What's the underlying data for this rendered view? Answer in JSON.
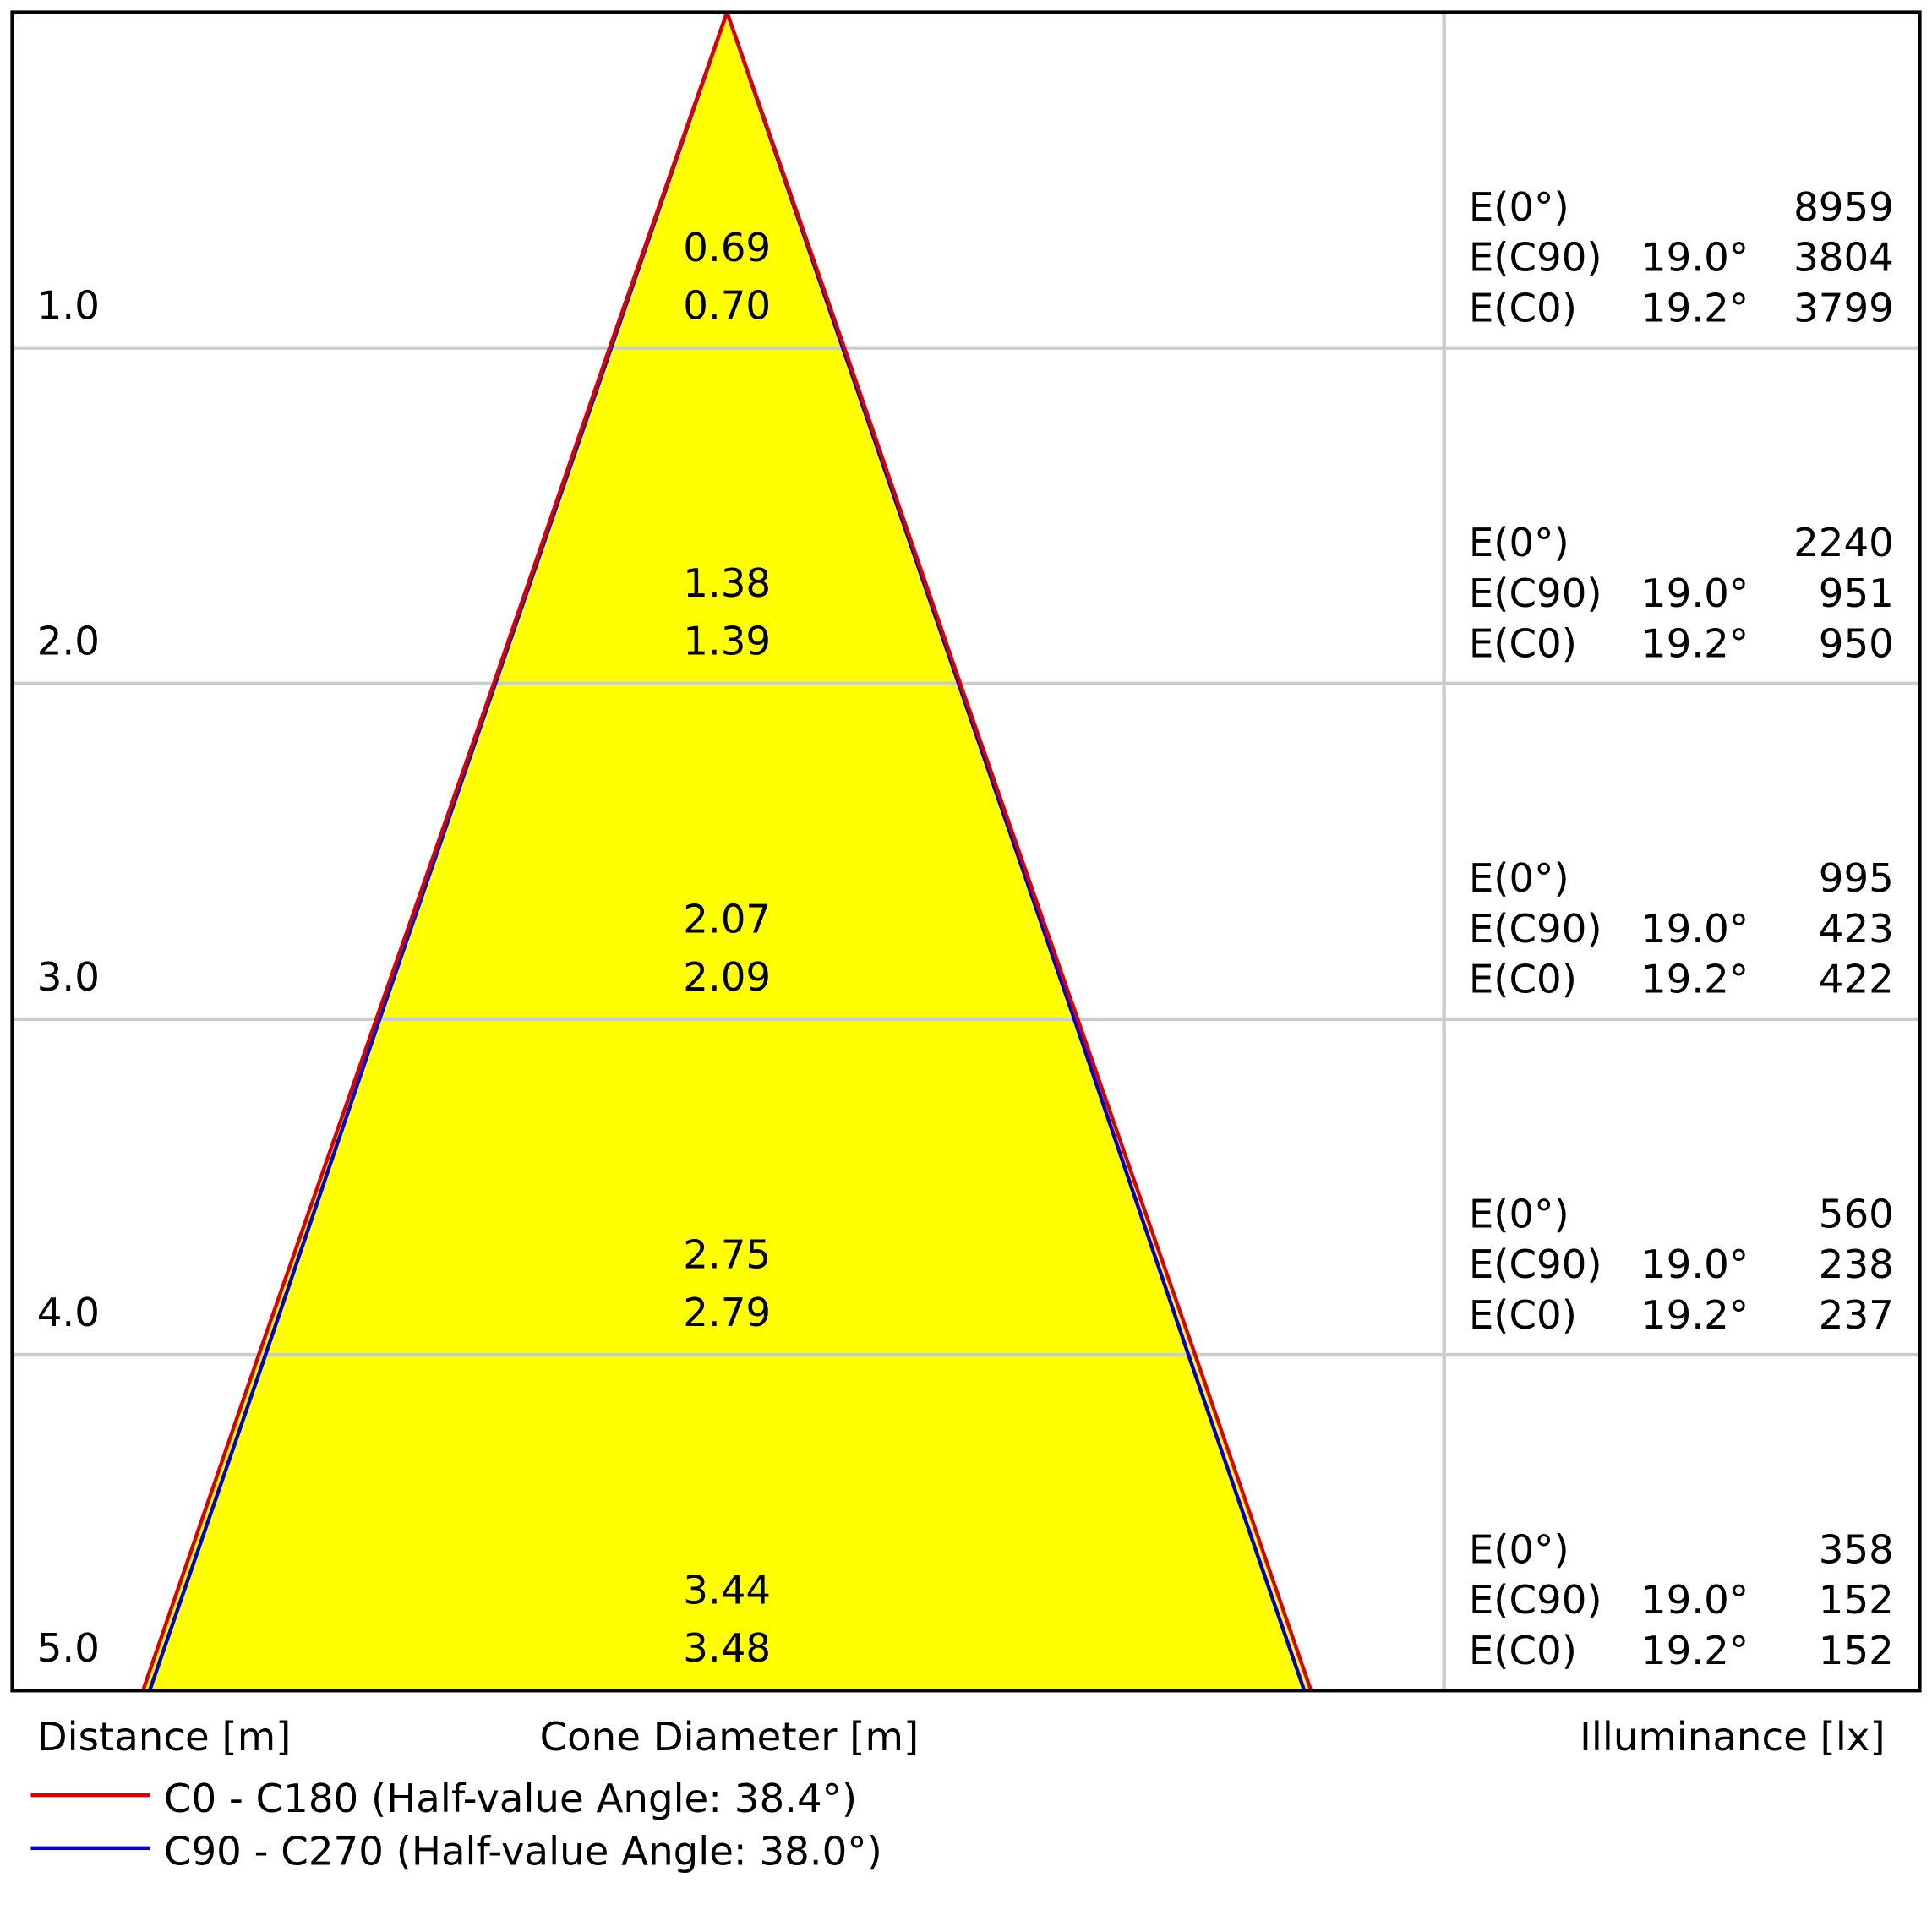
{
  "chart_data": {
    "type": "cone",
    "x_label": "Distance [m]",
    "center_label": "Cone Diameter [m]",
    "right_label": "Illuminance [lx]",
    "distances": [
      {
        "value": 1,
        "label": "1.0"
      },
      {
        "value": 2,
        "label": "2.0"
      },
      {
        "value": 3,
        "label": "3.0"
      },
      {
        "value": 4,
        "label": "4.0"
      },
      {
        "value": 5,
        "label": "5.0"
      }
    ],
    "series": [
      {
        "name": "C90 - C270 (Half-value Angle: 38.0°)",
        "color": "#0000dd",
        "values": [
          0.69,
          1.38,
          2.07,
          2.75,
          3.44
        ],
        "value_labels": [
          "0.69",
          "1.38",
          "2.07",
          "2.75",
          "3.44"
        ]
      },
      {
        "name": "C0 - C180 (Half-value Angle: 38.4°)",
        "color": "#dd0000",
        "values": [
          0.7,
          1.39,
          2.09,
          2.79,
          3.48
        ],
        "value_labels": [
          "0.70",
          "1.39",
          "2.09",
          "2.79",
          "3.48"
        ]
      }
    ],
    "legend_order": [
      1,
      0
    ],
    "fill_color": "#ffff00",
    "illuminance": {
      "row_labels": [
        "E(0°)",
        "E(C90)",
        "E(C0)"
      ],
      "angles": [
        "19.0°",
        "19.2°"
      ],
      "e0": [
        8959,
        2240,
        995,
        560,
        358
      ],
      "c90": [
        3804,
        951,
        423,
        238,
        152
      ],
      "c0": [
        3799,
        950,
        422,
        237,
        152
      ]
    }
  }
}
